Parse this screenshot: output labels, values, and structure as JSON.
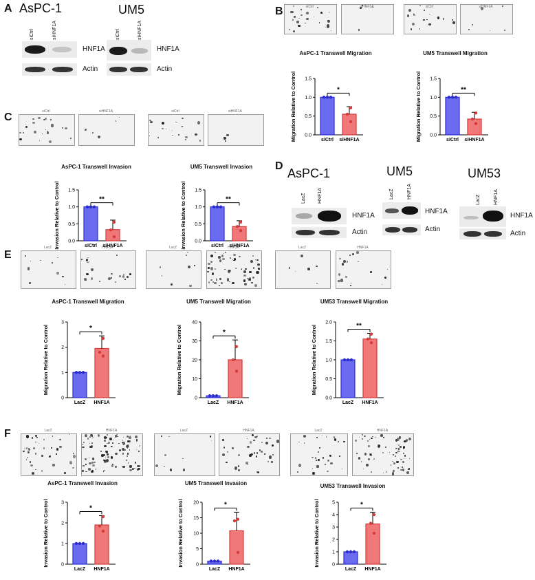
{
  "panels": {
    "A": "A",
    "B": "B",
    "C": "C",
    "D": "D",
    "E": "E",
    "F": "F"
  },
  "blots": {
    "a_aspc1": {
      "title": "AsPC-1",
      "lanes": [
        "siCtrl",
        "siHNF1A"
      ],
      "protein": "HNF1A",
      "control": "Actin"
    },
    "a_um5": {
      "title": "UM5",
      "lanes": [
        "siCtrl",
        "siHNF1A"
      ],
      "protein": "HNF1A",
      "control": "Actin"
    },
    "d_aspc1": {
      "title": "AsPC-1",
      "lanes": [
        "LacZ",
        "HNF1A"
      ],
      "protein": "HNF1A",
      "control": "Actin"
    },
    "d_um5": {
      "title": "UM5",
      "lanes": [
        "LacZ",
        "HNF1A"
      ],
      "protein": "HNF1A",
      "control": "Actin"
    },
    "d_um53": {
      "title": "UM53",
      "lanes": [
        "LacZ",
        "HNF1A"
      ],
      "protein": "HNF1A",
      "control": "Actin"
    }
  },
  "micrographs": {
    "b": [
      "siCtrl",
      "siHNF1A",
      "siCtrl",
      "siHNF1A"
    ],
    "c": [
      "siCtrl",
      "siHNF1A",
      "siCtrl",
      "siHNF1A"
    ],
    "e": [
      "LacZ",
      "HNF1A",
      "LacZ",
      "HNF1A",
      "LacZ",
      "HNF1A"
    ],
    "f": [
      "LacZ",
      "HNF1A",
      "LacZ",
      "HNF1A",
      "LacZ",
      "HNF1A"
    ]
  },
  "plot_titles": {
    "b1": "AsPC-1 Transwell Migration",
    "b2": "UM5 Transwell Migration",
    "c1": "AsPC-1 Transwell Invasion",
    "c2": "UM5 Transwell Invasion",
    "e1": "AsPC-1 Transwell Migration",
    "e2": "UM5 Transwell Migration",
    "e3": "UM53 Transwell Migration",
    "f1": "AsPC-1 Transwell Invasion",
    "f2": "UM5 Transwell Invasion",
    "f3": "UM53 Transwell Invasion"
  },
  "colors": {
    "control": "#6b6bf0",
    "treatment": "#f07878",
    "control_edge": "#2b2bd6",
    "treatment_edge": "#d63b3b"
  },
  "chart_data": [
    {
      "id": "b1",
      "type": "bar",
      "categories": [
        "siCtrl",
        "siHNF1A"
      ],
      "values": [
        1.0,
        0.55
      ],
      "errors": [
        0,
        0.2
      ],
      "points": [
        [
          1,
          1,
          1
        ],
        [
          0.72,
          0.55,
          0.35
        ]
      ],
      "ylabel": "Migration Relative to Control",
      "ylim": [
        0,
        1.5
      ],
      "yticks": [
        "0.0",
        "0.5",
        "1.0",
        "1.5"
      ],
      "significance": "*"
    },
    {
      "id": "b2",
      "type": "bar",
      "categories": [
        "siCtrl",
        "siHNF1A"
      ],
      "values": [
        1.0,
        0.42
      ],
      "errors": [
        0,
        0.18
      ],
      "points": [
        [
          1,
          1,
          1
        ],
        [
          0.58,
          0.42,
          0.3
        ]
      ],
      "ylabel": "Migration Relative to Control",
      "ylim": [
        0,
        1.5
      ],
      "yticks": [
        "0.0",
        "0.5",
        "1.0",
        "1.5"
      ],
      "significance": "**"
    },
    {
      "id": "c1",
      "type": "bar",
      "categories": [
        "siCtrl",
        "siHNF1A"
      ],
      "values": [
        1.0,
        0.33
      ],
      "errors": [
        0,
        0.28
      ],
      "points": [
        [
          1,
          1,
          1
        ],
        [
          0.55,
          0.32,
          0.12
        ]
      ],
      "ylabel": "Invasion Relative to Control",
      "ylim": [
        0,
        1.5
      ],
      "yticks": [
        "0.0",
        "0.5",
        "1.0",
        "1.5"
      ],
      "significance": "**"
    },
    {
      "id": "c2",
      "type": "bar",
      "categories": [
        "siCtrl",
        "siHNF1A"
      ],
      "values": [
        1.0,
        0.42
      ],
      "errors": [
        0,
        0.17
      ],
      "points": [
        [
          1,
          1,
          1
        ],
        [
          0.55,
          0.42,
          0.3
        ]
      ],
      "ylabel": "Invasion Relative to Control",
      "ylim": [
        0,
        1.5
      ],
      "yticks": [
        "0.0",
        "0.5",
        "1.0",
        "1.5"
      ],
      "significance": "**"
    },
    {
      "id": "e1",
      "type": "bar",
      "categories": [
        "LacZ",
        "HNF1A"
      ],
      "values": [
        1.0,
        1.95
      ],
      "errors": [
        0,
        0.5
      ],
      "points": [
        [
          1,
          1,
          1
        ],
        [
          2.35,
          1.8,
          1.65
        ]
      ],
      "ylabel": "Migration Relative to Control",
      "ylim": [
        0,
        3
      ],
      "yticks": [
        "0",
        "1",
        "2",
        "3"
      ],
      "significance": "*"
    },
    {
      "id": "e2",
      "type": "bar",
      "categories": [
        "LacZ",
        "HNF1A"
      ],
      "values": [
        1.0,
        20.0
      ],
      "errors": [
        0,
        10.5
      ],
      "points": [
        [
          1,
          1,
          1
        ],
        [
          27,
          20,
          14
        ]
      ],
      "ylabel": "Migration Relative to Control",
      "ylim": [
        0,
        40
      ],
      "yticks": [
        "0",
        "10",
        "20",
        "30",
        "40"
      ],
      "significance": "*"
    },
    {
      "id": "e3",
      "type": "bar",
      "categories": [
        "LacZ",
        "HNF1A"
      ],
      "values": [
        1.0,
        1.55
      ],
      "errors": [
        0,
        0.15
      ],
      "points": [
        [
          1,
          1,
          1
        ],
        [
          1.68,
          1.55,
          1.45
        ]
      ],
      "ylabel": "Migration Relative to Control",
      "ylim": [
        0,
        2
      ],
      "yticks": [
        "0.0",
        "0.5",
        "1.0",
        "1.5",
        "2.0"
      ],
      "significance": "**"
    },
    {
      "id": "f1",
      "type": "bar",
      "categories": [
        "LacZ",
        "HNF1A"
      ],
      "values": [
        1.0,
        1.9
      ],
      "errors": [
        0,
        0.45
      ],
      "points": [
        [
          1,
          1,
          1
        ],
        [
          2.3,
          1.85,
          1.6
        ]
      ],
      "ylabel": "Invasion Relative to Control",
      "ylim": [
        0,
        3
      ],
      "yticks": [
        "0",
        "1",
        "2",
        "3"
      ],
      "significance": "*"
    },
    {
      "id": "f2",
      "type": "bar",
      "categories": [
        "LacZ",
        "HNF1A"
      ],
      "values": [
        1.0,
        10.8
      ],
      "errors": [
        0,
        6.0
      ],
      "points": [
        [
          1,
          1,
          1
        ],
        [
          14.5,
          14.0,
          3.8
        ]
      ],
      "ylabel": "Invasion Relative to Control",
      "ylim": [
        0,
        20
      ],
      "yticks": [
        "0",
        "5",
        "10",
        "15",
        "20"
      ],
      "significance": "*"
    },
    {
      "id": "f3",
      "type": "bar",
      "categories": [
        "LacZ",
        "HNF1A"
      ],
      "values": [
        1.0,
        3.25
      ],
      "errors": [
        0,
        0.95
      ],
      "points": [
        [
          1,
          1,
          1
        ],
        [
          4.0,
          3.3,
          2.5
        ]
      ],
      "ylabel": "Invasion Relative to Control",
      "ylim": [
        0,
        5
      ],
      "yticks": [
        "0",
        "1",
        "2",
        "3",
        "4",
        "5"
      ],
      "significance": "*"
    }
  ]
}
